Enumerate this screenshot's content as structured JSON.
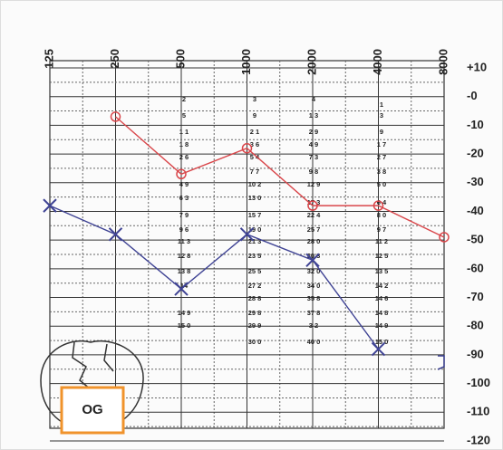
{
  "label": "OG",
  "chart_data": {
    "type": "line",
    "x": [
      125,
      250,
      500,
      1000,
      2000,
      4000,
      8000
    ],
    "xticks": [
      125,
      250,
      500,
      1000,
      2000,
      4000,
      8000
    ],
    "xlim": [
      125,
      8000
    ],
    "xscale": "log",
    "ylim": [
      10,
      -120
    ],
    "yticks": [
      {
        "value": 10,
        "label": "+10"
      },
      {
        "value": 0,
        "label": "-0"
      },
      -10,
      -20,
      -30,
      -40,
      -50,
      -60,
      -70,
      -80,
      -90,
      -100,
      -110,
      -120
    ],
    "grid": true,
    "series": [
      {
        "color": "#d9464a",
        "marker": "circle",
        "values": [
          null,
          -7,
          -27,
          -18,
          -38,
          -38,
          -49
        ]
      },
      {
        "color": "#3f4394",
        "marker": "cross",
        "values": [
          -38,
          -48,
          -67,
          -48,
          -57,
          -88,
          null
        ]
      }
    ],
    "dot_columns": [
      [
        "2",
        "5",
        "1 1",
        "1 8",
        "2 6",
        "4 9",
        "6 3",
        "7 9",
        "9 6",
        "11 3",
        "12 8",
        "13 8",
        "14",
        "14 9",
        "15 0"
      ],
      [
        "3",
        "9",
        "2 1",
        "3 6",
        "5 4",
        "7 7",
        "10 2",
        "13 0",
        "15 7",
        "19 0",
        "21 3",
        "23 5",
        "25 5",
        "27 2",
        "28 8",
        "29 8",
        "29 9",
        "30 0"
      ],
      [
        "4",
        "1 3",
        "2 9",
        "4 9",
        "7 3",
        "9 8",
        "12 9",
        "17 3",
        "22 4",
        "25 7",
        "28 0",
        "30 3",
        "32 0",
        "34 0",
        "35 8",
        "37 8",
        "3 2",
        "40 0"
      ],
      [
        "1",
        "3",
        "9",
        "1 7",
        "2 7",
        "3 8",
        "5 0",
        "6 4",
        "8 0",
        "9 7",
        "11 2",
        "12 5",
        "13 5",
        "14 2",
        "14 6",
        "14 8",
        "14 9",
        "15 0"
      ]
    ]
  }
}
